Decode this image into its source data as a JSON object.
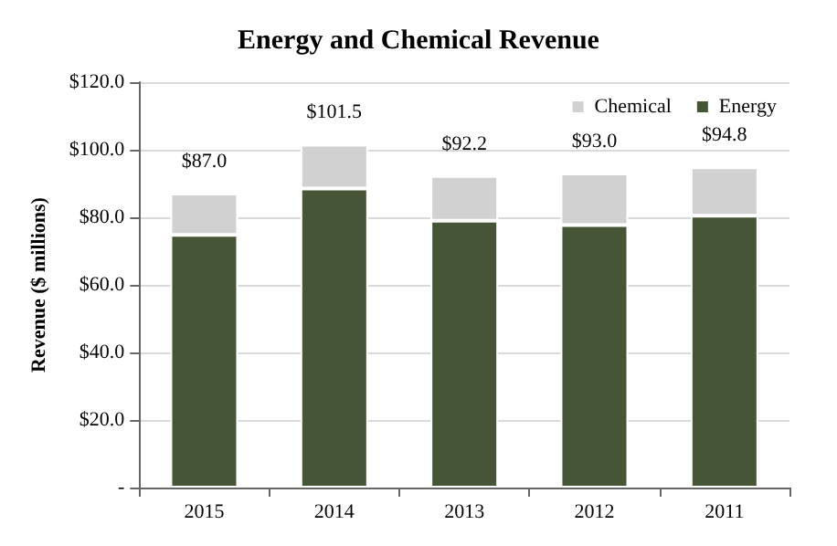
{
  "chart_data": {
    "type": "bar",
    "title": "Energy and Chemical Revenue",
    "ylabel": "Revenue ($ millions)",
    "categories": [
      "2015",
      "2014",
      "2013",
      "2012",
      "2011"
    ],
    "series": [
      {
        "name": "Energy",
        "color": "#465535",
        "values": [
          74.8,
          88.5,
          79.0,
          77.7,
          80.5
        ]
      },
      {
        "name": "Chemical",
        "color": "#d0d1d0",
        "values": [
          12.2,
          13.0,
          13.2,
          15.3,
          14.3
        ]
      }
    ],
    "stacked": true,
    "totals": [
      "$87.0",
      "$101.5",
      "$92.2",
      "$93.0",
      "$94.8"
    ],
    "ylim": [
      0,
      120
    ],
    "yticks": [
      {
        "value": 0,
        "label": "-"
      },
      {
        "value": 20,
        "label": "$20.0"
      },
      {
        "value": 40,
        "label": "$40.0"
      },
      {
        "value": 60,
        "label": "$60.0"
      },
      {
        "value": 80,
        "label": "$80.0"
      },
      {
        "value": 100,
        "label": "$100.0"
      },
      {
        "value": 120,
        "label": "$120.0"
      }
    ],
    "grid": "y",
    "legend": "top right"
  }
}
